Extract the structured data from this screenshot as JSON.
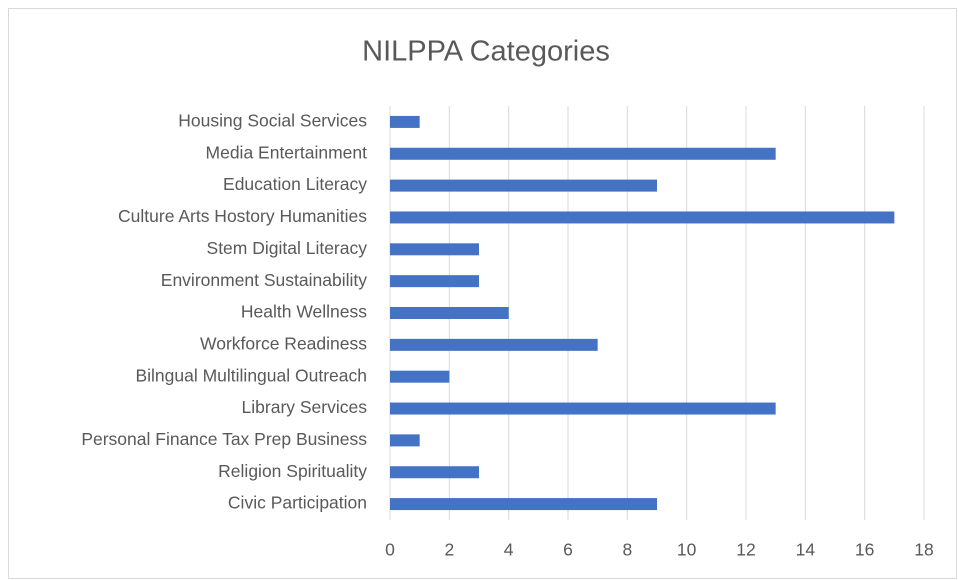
{
  "chart_data": {
    "type": "hbar",
    "title": "NILPPA Categories",
    "categories": [
      "Housing Social Services",
      "Media Entertainment",
      "Education Literacy",
      "Culture Arts Hostory Humanities",
      "Stem Digital Literacy",
      "Environment Sustainability",
      "Health Wellness",
      "Workforce Readiness",
      "Bilngual Multilingual Outreach",
      "Library Services",
      "Personal Finance Tax Prep Business",
      "Religion Spirituality",
      "Civic Participation"
    ],
    "values": [
      1,
      13,
      9,
      17,
      3,
      3,
      4,
      7,
      2,
      13,
      1,
      3,
      9
    ],
    "color": "#4472c4",
    "xlim": [
      0,
      18
    ],
    "xticks": [
      0,
      2,
      4,
      6,
      8,
      10,
      12,
      14,
      16,
      18
    ],
    "grid": true
  }
}
